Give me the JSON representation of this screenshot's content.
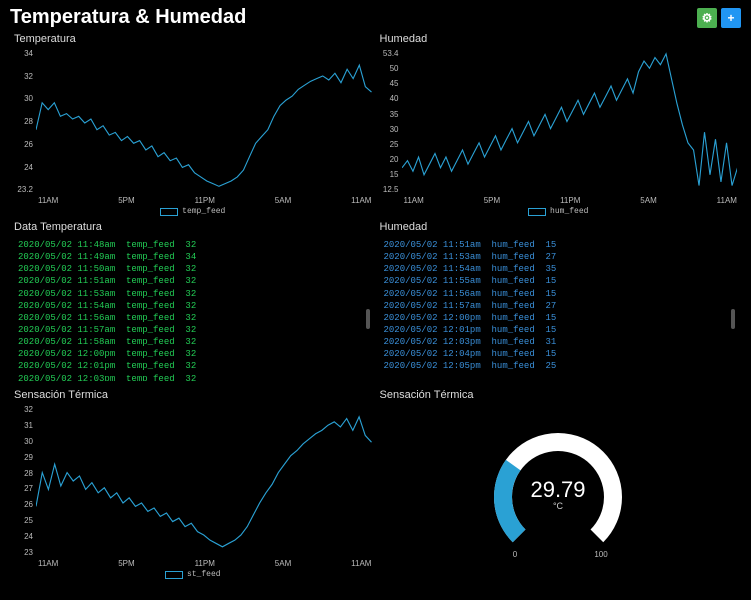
{
  "page": {
    "title": "Temperatura & Humedad",
    "bg": "#000000",
    "accent_blue": "#2aa1d4",
    "text_green": "#22cc55",
    "text_blue": "#3a8fd8"
  },
  "header_buttons": {
    "settings": {
      "icon": "⚙",
      "color": "#4caf50"
    },
    "add": {
      "icon": "+",
      "color": "#2196f3"
    }
  },
  "panels": {
    "temp_chart": {
      "title": "Temperatura",
      "type": "line",
      "series_name": "temp_feed",
      "line_color": "#2aa1d4",
      "ylim": [
        23.2,
        34
      ],
      "yticks": [
        "34",
        "32",
        "30",
        "28",
        "26",
        "24",
        "23.2"
      ],
      "xticks": [
        "11AM",
        "5PM",
        "11PM",
        "5AM",
        "11AM"
      ],
      "values": [
        28,
        30,
        29.5,
        30,
        29,
        29.2,
        28.8,
        29,
        28.5,
        28.8,
        28,
        28.3,
        27.6,
        27.8,
        27.2,
        27.5,
        27,
        27.2,
        26.5,
        26.8,
        26,
        26.3,
        25.7,
        25.9,
        25.2,
        25.4,
        24.8,
        24.5,
        24.2,
        24,
        23.8,
        24,
        24.2,
        24.5,
        25,
        26,
        27,
        27.5,
        28,
        29,
        29.8,
        30.2,
        30.5,
        31,
        31.3,
        31.6,
        31.8,
        32,
        31.7,
        32.2,
        31.5,
        32.5,
        31.8,
        32.8,
        31.2,
        30.8
      ]
    },
    "hum_chart": {
      "title": "Humedad",
      "type": "line",
      "series_name": "hum_feed",
      "line_color": "#2aa1d4",
      "ylim": [
        12.5,
        53.4
      ],
      "yticks": [
        "53.4",
        "50",
        "45",
        "40",
        "35",
        "30",
        "25",
        "20",
        "15",
        "12.5"
      ],
      "xticks": [
        "11AM",
        "5PM",
        "11PM",
        "5AM",
        "11AM"
      ],
      "values": [
        20,
        22,
        19,
        23,
        18,
        21,
        24,
        20,
        23,
        19,
        22,
        25,
        21,
        24,
        27,
        23,
        26,
        29,
        25,
        28,
        31,
        27,
        30,
        33,
        29,
        32,
        35,
        31,
        34,
        37,
        33,
        36,
        39,
        35,
        38,
        41,
        37,
        40,
        43,
        39,
        42,
        45,
        41,
        47,
        50,
        48,
        51,
        49,
        52,
        45,
        38,
        32,
        27,
        25,
        15,
        30,
        18,
        28,
        16,
        27,
        15,
        20
      ]
    },
    "temp_stream": {
      "title": "Data Temperatura",
      "text_color": "#22cc55",
      "feed": "temp_feed",
      "rows": [
        {
          "ts": "2020/05/02 11:48am",
          "val": "32"
        },
        {
          "ts": "2020/05/02 11:49am",
          "val": "34"
        },
        {
          "ts": "2020/05/02 11:50am",
          "val": "32"
        },
        {
          "ts": "2020/05/02 11:51am",
          "val": "32"
        },
        {
          "ts": "2020/05/02 11:53am",
          "val": "32"
        },
        {
          "ts": "2020/05/02 11:54am",
          "val": "32"
        },
        {
          "ts": "2020/05/02 11:56am",
          "val": "32"
        },
        {
          "ts": "2020/05/02 11:57am",
          "val": "32"
        },
        {
          "ts": "2020/05/02 11:58am",
          "val": "32"
        },
        {
          "ts": "2020/05/02 12:00pm",
          "val": "32"
        },
        {
          "ts": "2020/05/02 12:01pm",
          "val": "32"
        },
        {
          "ts": "2020/05/02 12:03pm",
          "val": "32"
        }
      ]
    },
    "hum_stream": {
      "title": "Humedad",
      "text_color": "#3a8fd8",
      "feed": "hum_feed",
      "rows": [
        {
          "ts": "2020/05/02 11:51am",
          "val": "15"
        },
        {
          "ts": "2020/05/02 11:53am",
          "val": "27"
        },
        {
          "ts": "2020/05/02 11:54am",
          "val": "35"
        },
        {
          "ts": "2020/05/02 11:55am",
          "val": "15"
        },
        {
          "ts": "2020/05/02 11:56am",
          "val": "15"
        },
        {
          "ts": "2020/05/02 11:57am",
          "val": "27"
        },
        {
          "ts": "2020/05/02 12:00pm",
          "val": "15"
        },
        {
          "ts": "2020/05/02 12:01pm",
          "val": "15"
        },
        {
          "ts": "2020/05/02 12:03pm",
          "val": "31"
        },
        {
          "ts": "2020/05/02 12:04pm",
          "val": "15"
        },
        {
          "ts": "2020/05/02 12:05pm",
          "val": "25"
        }
      ]
    },
    "st_chart": {
      "title": "Sensación Térmica",
      "type": "line",
      "series_name": "st_feed",
      "line_color": "#2aa1d4",
      "ylim": [
        23,
        32
      ],
      "yticks": [
        "32",
        "31",
        "30",
        "29",
        "28",
        "27",
        "26",
        "25",
        "24",
        "23"
      ],
      "xticks": [
        "11AM",
        "5PM",
        "11PM",
        "5AM",
        "11AM"
      ],
      "values": [
        26,
        28,
        27,
        28.5,
        27.2,
        28,
        27.5,
        27.8,
        27,
        27.4,
        26.8,
        27.1,
        26.5,
        26.8,
        26.2,
        26.5,
        26,
        26.2,
        25.7,
        25.9,
        25.4,
        25.6,
        25.1,
        25.3,
        24.8,
        25,
        24.5,
        24.3,
        24,
        23.8,
        23.6,
        23.8,
        24,
        24.3,
        24.8,
        25.5,
        26.2,
        26.8,
        27.3,
        28,
        28.5,
        29,
        29.3,
        29.7,
        30,
        30.3,
        30.5,
        30.8,
        31,
        30.7,
        31.2,
        30.5,
        31.3,
        30.2,
        29.8
      ]
    },
    "st_gauge": {
      "title": "Sensación Térmica",
      "type": "gauge",
      "value": 29.79,
      "display": "29.79",
      "unit": "°C",
      "min": 0,
      "max": 100,
      "arc_bg": "#ffffff",
      "arc_fill": "#2aa1d4",
      "arc_width": 18
    }
  }
}
